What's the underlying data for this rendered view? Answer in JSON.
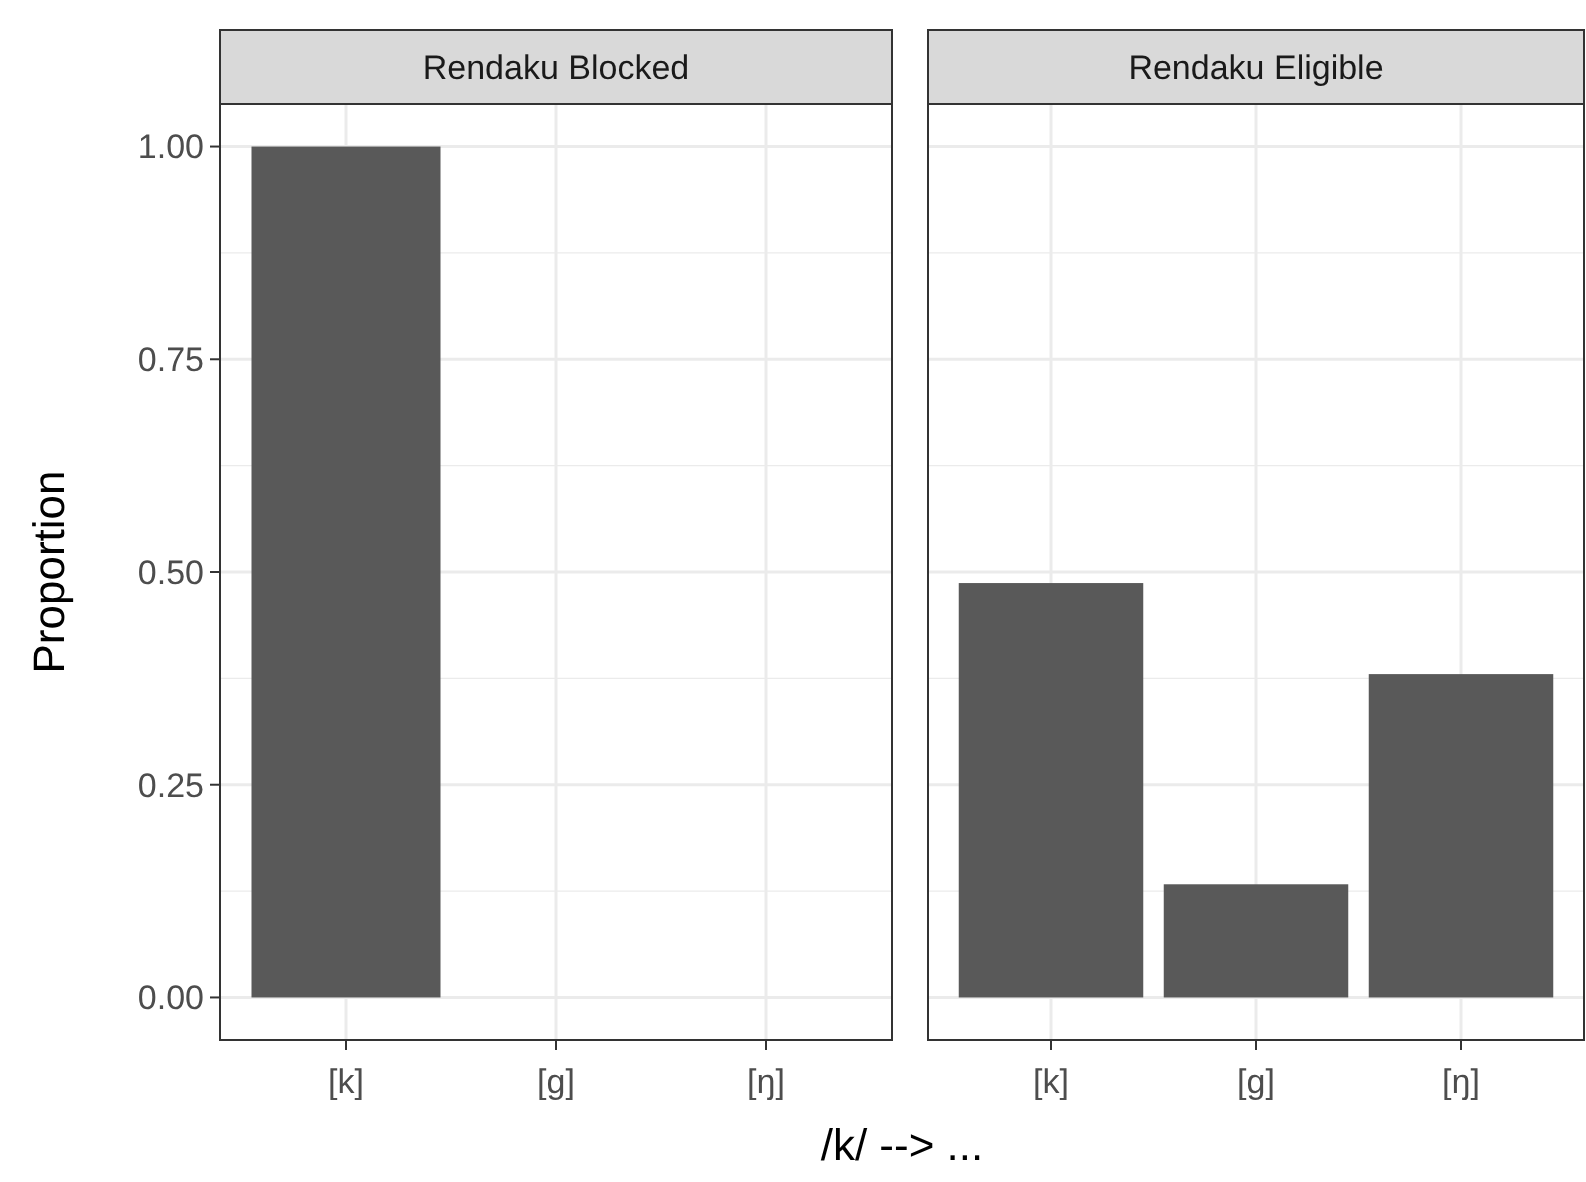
{
  "chart_data": [
    {
      "type": "bar",
      "title": "Rendaku Blocked",
      "categories": [
        "[k]",
        "[g]",
        "[ŋ]"
      ],
      "values": [
        1.0,
        0,
        0
      ],
      "color": "#595959",
      "ylim": [
        -0.05,
        1.05
      ],
      "yticks": [
        {
          "value": 0,
          "label": "0.00"
        },
        {
          "value": 0.25,
          "label": "0.25"
        },
        {
          "value": 0.5,
          "label": "0.50"
        },
        {
          "value": 0.75,
          "label": "0.75"
        },
        {
          "value": 1,
          "label": "1.00"
        }
      ],
      "grid": true,
      "ylabel": "Proportion",
      "xlabel": "/k/ --> ..."
    },
    {
      "type": "bar",
      "title": "Rendaku Eligible",
      "categories": [
        "[k]",
        "[g]",
        "[ŋ]"
      ],
      "values": [
        0.487,
        0.133,
        0.38
      ],
      "color": "#595959",
      "ylim": [
        -0.05,
        1.05
      ],
      "yticks": [
        0,
        0.25,
        0.5,
        0.75,
        1
      ],
      "grid": true,
      "tick_labels": "x"
    }
  ]
}
